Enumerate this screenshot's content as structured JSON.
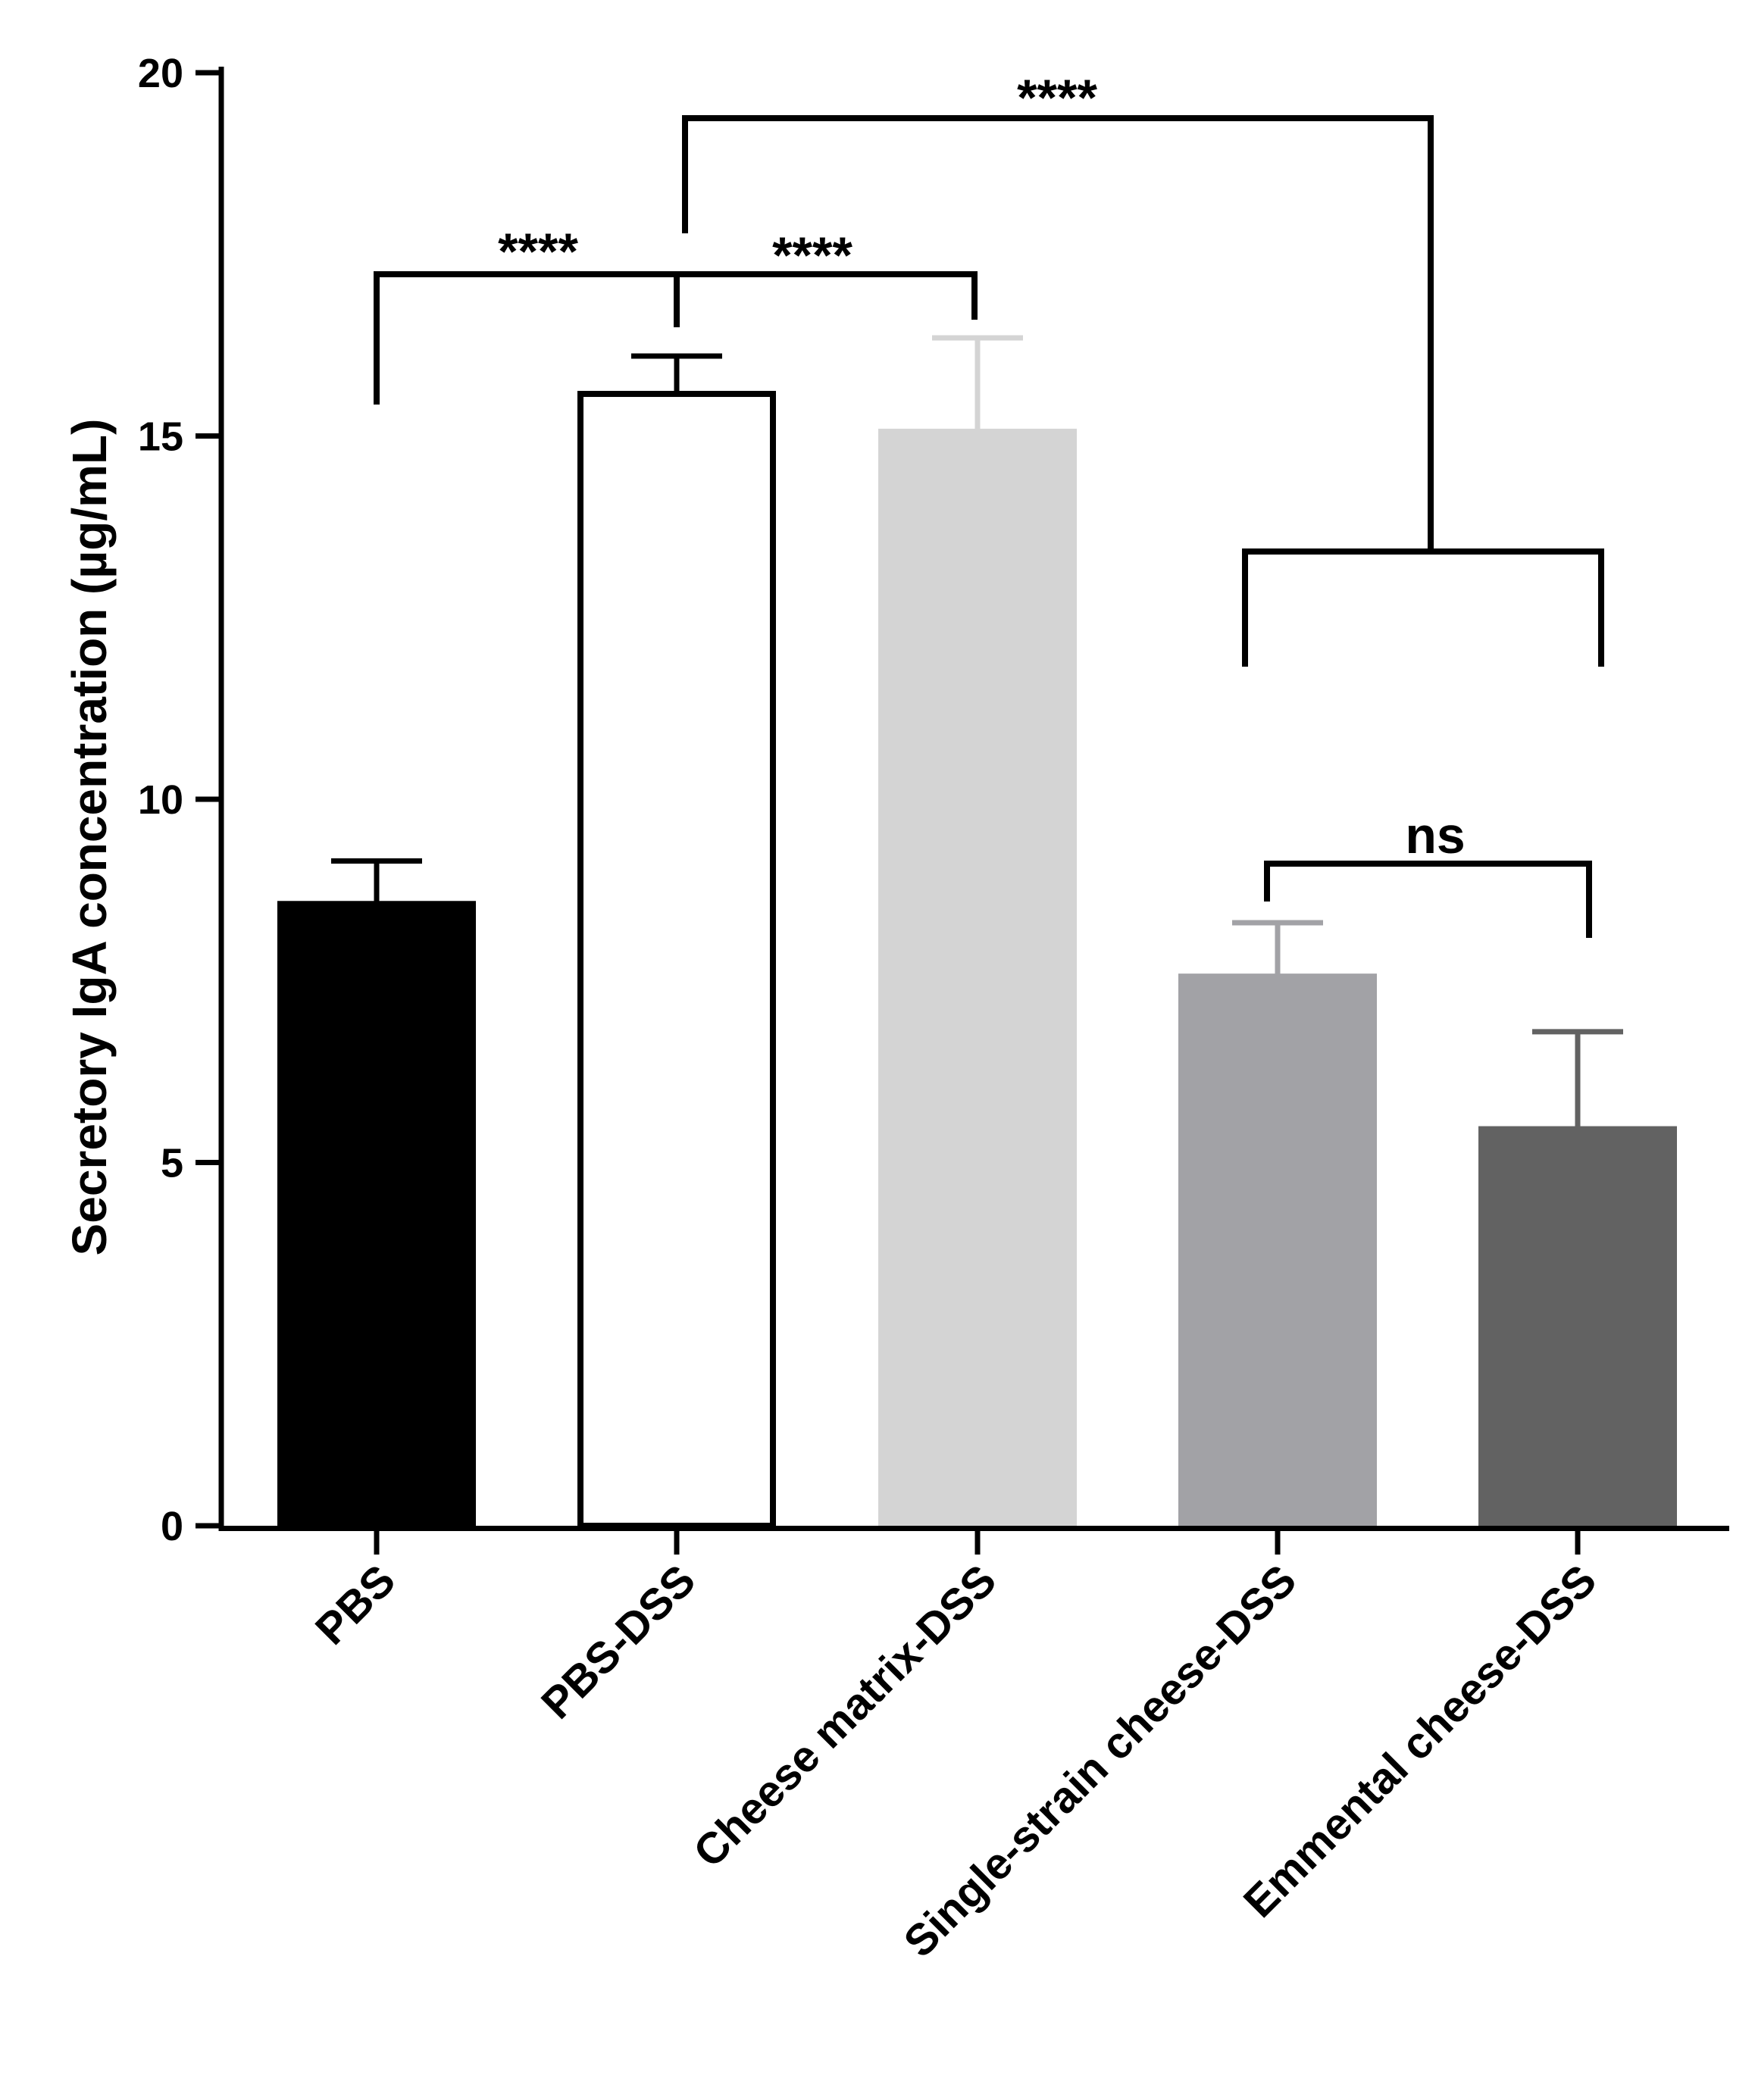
{
  "chart_data": {
    "type": "bar",
    "title": "",
    "xlabel": "",
    "ylabel": "Secretory IgA concentration (µg/mL)",
    "ylim": [
      0,
      20
    ],
    "yticks": [
      "0",
      "5",
      "10",
      "15",
      "20"
    ],
    "grid": false,
    "categories": [
      "PBS",
      "PBS-DSS",
      "Cheese matrix-DSS",
      "Single-strain cheese-DSS",
      "Emmental cheese-DSS"
    ],
    "values": [
      8.6,
      15.6,
      15.1,
      7.6,
      5.5
    ],
    "error": [
      0.55,
      0.5,
      1.25,
      0.7,
      1.3
    ],
    "colors": [
      "#000000",
      "#ffffff",
      "#d4d4d4",
      "#a2a2a6",
      "#626262"
    ],
    "significance": [
      {
        "label": "****",
        "groups": "PBS vs PBS-DSS"
      },
      {
        "label": "****",
        "groups": "PBS-DSS vs Cheese matrix-DSS"
      },
      {
        "label": "****",
        "groups": "PBS-DSS vs Single-strain cheese-DSS and Emmental cheese-DSS"
      },
      {
        "label": "ns",
        "groups": "Single-strain cheese-DSS vs Emmental cheese-DSS"
      }
    ]
  }
}
